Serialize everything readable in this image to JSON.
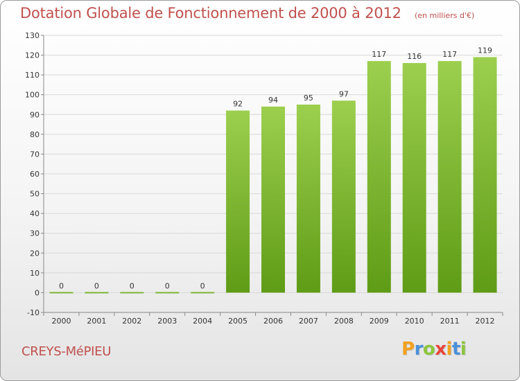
{
  "chart_data": {
    "type": "bar",
    "title": "Dotation Globale de Fonctionnement de 2000 à 2012",
    "unit_note": "(en milliers d'€)",
    "categories": [
      "2000",
      "2001",
      "2002",
      "2003",
      "2004",
      "2005",
      "2006",
      "2007",
      "2008",
      "2009",
      "2010",
      "2011",
      "2012"
    ],
    "values": [
      0,
      0,
      0,
      0,
      0,
      92,
      94,
      95,
      97,
      117,
      116,
      117,
      119
    ],
    "ylim": [
      -10,
      130
    ],
    "yticks": [
      -10,
      0,
      10,
      20,
      30,
      40,
      50,
      60,
      70,
      80,
      90,
      100,
      110,
      120,
      130
    ],
    "xlabel": "",
    "ylabel": "",
    "grid": true,
    "bar_color_top": "#9ccf4e",
    "bar_color_bottom": "#5f9c16"
  },
  "commune": "CREYS-MéPIEU",
  "logo": {
    "letters": [
      "P",
      "r",
      "o",
      "x",
      "i",
      "t",
      "i"
    ],
    "colors": [
      "#f2a11f",
      "#4a90d9",
      "#8cc63f",
      "#e8463a",
      "#f2a11f",
      "#4a90d9",
      "#8cc63f"
    ]
  }
}
